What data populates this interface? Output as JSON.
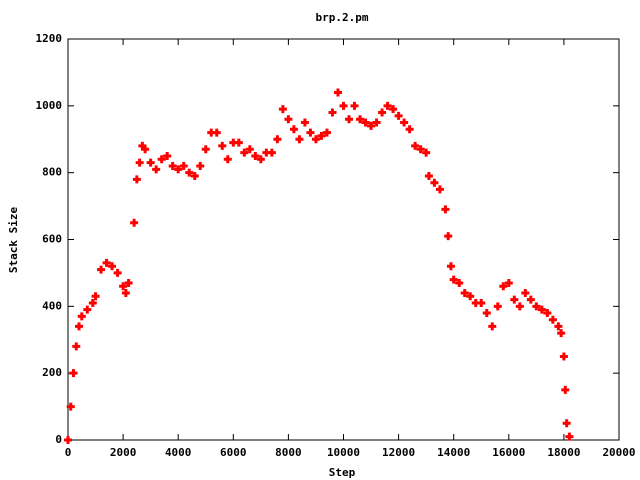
{
  "chart_data": {
    "type": "scatter",
    "title": "brp.2.pm",
    "x_label": "Step",
    "y_label": "Stack Size",
    "color": "#ff0000",
    "xlim": [
      0,
      20000
    ],
    "xticks": [
      0,
      2000,
      4000,
      6000,
      8000,
      10000,
      12000,
      14000,
      16000,
      18000,
      20000
    ],
    "ylim": [
      0,
      1200
    ],
    "yticks": [
      0,
      200,
      400,
      600,
      800,
      1000,
      1200
    ],
    "x": [
      0,
      100,
      200,
      300,
      400,
      500,
      700,
      900,
      1000,
      1200,
      1400,
      1600,
      1800,
      2000,
      2100,
      2200,
      2400,
      2500,
      2600,
      2700,
      2800,
      3000,
      3200,
      3400,
      3600,
      3800,
      4000,
      4200,
      4400,
      4600,
      4800,
      5000,
      5200,
      5400,
      5600,
      5800,
      6000,
      6200,
      6400,
      6600,
      6800,
      7000,
      7200,
      7400,
      7600,
      7800,
      8000,
      8200,
      8400,
      8600,
      8800,
      9000,
      9200,
      9400,
      9600,
      9800,
      10000,
      10200,
      10400,
      10600,
      10800,
      11000,
      11200,
      11400,
      11600,
      11800,
      12000,
      12200,
      12400,
      12600,
      12800,
      13000,
      13100,
      13300,
      13500,
      13700,
      13800,
      13900,
      14000,
      14200,
      14400,
      14600,
      14800,
      15000,
      15200,
      15400,
      15600,
      15800,
      16000,
      16200,
      16400,
      16600,
      16800,
      17000,
      17200,
      17400,
      17600,
      17800,
      17900,
      18000,
      18050,
      18100,
      18200
    ],
    "y": [
      0,
      100,
      200,
      280,
      340,
      370,
      390,
      410,
      430,
      510,
      530,
      520,
      500,
      460,
      440,
      470,
      650,
      780,
      830,
      880,
      870,
      830,
      810,
      840,
      850,
      820,
      810,
      820,
      800,
      790,
      820,
      870,
      920,
      920,
      880,
      840,
      890,
      890,
      860,
      870,
      850,
      840,
      860,
      860,
      900,
      990,
      960,
      930,
      900,
      950,
      920,
      900,
      910,
      920,
      980,
      1040,
      1000,
      960,
      1000,
      960,
      950,
      940,
      950,
      980,
      1000,
      990,
      970,
      950,
      930,
      880,
      870,
      860,
      790,
      770,
      750,
      690,
      610,
      520,
      480,
      470,
      440,
      430,
      410,
      410,
      380,
      340,
      400,
      460,
      470,
      420,
      400,
      440,
      420,
      400,
      390,
      380,
      360,
      340,
      320,
      250,
      150,
      50,
      10
    ]
  }
}
